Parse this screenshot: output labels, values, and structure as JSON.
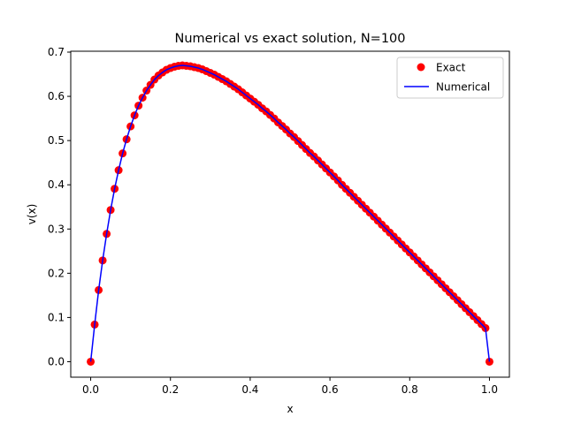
{
  "colors": {
    "exact": "#ff0000",
    "numerical": "#0000ff",
    "axis": "#000000",
    "legend_border": "#cccccc",
    "background": "#ffffff"
  },
  "chart_data": {
    "type": "line",
    "title": "Numerical vs exact solution, N=100",
    "xlabel": "x",
    "ylabel": "v(x)",
    "xlim": [
      -0.05,
      1.05
    ],
    "ylim": [
      -0.035,
      0.702
    ],
    "xticks": [
      0.0,
      0.2,
      0.4,
      0.6,
      0.8,
      1.0
    ],
    "xtick_labels": [
      "0.0",
      "0.2",
      "0.4",
      "0.6",
      "0.8",
      "1.0"
    ],
    "yticks": [
      0.0,
      0.1,
      0.2,
      0.3,
      0.4,
      0.5,
      0.6,
      0.7
    ],
    "ytick_labels": [
      "0.0",
      "0.1",
      "0.2",
      "0.3",
      "0.4",
      "0.5",
      "0.6",
      "0.7"
    ],
    "grid": false,
    "legend_position": "top-right",
    "series": [
      {
        "name": "Exact",
        "style": "markers",
        "color": "#ff0000",
        "x": [
          0,
          0.01,
          0.02,
          0.03,
          0.04,
          0.05,
          0.06,
          0.07,
          0.08,
          0.09,
          0.1,
          0.11,
          0.12,
          0.13,
          0.14,
          0.15,
          0.16,
          0.17,
          0.18,
          0.19,
          0.2,
          0.21,
          0.22,
          0.23,
          0.24,
          0.25,
          0.26,
          0.27,
          0.28,
          0.29,
          0.3,
          0.31,
          0.32,
          0.33,
          0.34,
          0.35,
          0.36,
          0.37,
          0.38,
          0.39,
          0.4,
          0.41,
          0.42,
          0.43,
          0.44,
          0.45,
          0.46,
          0.47,
          0.48,
          0.49,
          0.5,
          0.51,
          0.52,
          0.53,
          0.54,
          0.55,
          0.56,
          0.57,
          0.58,
          0.59,
          0.6,
          0.61,
          0.62,
          0.63,
          0.64,
          0.65,
          0.66,
          0.67,
          0.68,
          0.69,
          0.7,
          0.71,
          0.72,
          0.73,
          0.74,
          0.75,
          0.76,
          0.77,
          0.78,
          0.79,
          0.8,
          0.81,
          0.82,
          0.83,
          0.84,
          0.85,
          0.86,
          0.87,
          0.88,
          0.89,
          0.9,
          0.91,
          0.92,
          0.93,
          0.94,
          0.95,
          0.96,
          0.97,
          0.98,
          0.99,
          1
        ],
        "y": [
          0,
          0.084,
          0.162,
          0.229,
          0.289,
          0.343,
          0.391,
          0.433,
          0.471,
          0.503,
          0.532,
          0.557,
          0.579,
          0.597,
          0.613,
          0.626,
          0.638,
          0.647,
          0.654,
          0.66,
          0.664,
          0.667,
          0.669,
          0.67,
          0.669,
          0.668,
          0.666,
          0.664,
          0.661,
          0.657,
          0.653,
          0.649,
          0.644,
          0.639,
          0.634,
          0.628,
          0.622,
          0.616,
          0.609,
          0.602,
          0.595,
          0.588,
          0.581,
          0.573,
          0.566,
          0.558,
          0.55,
          0.541,
          0.533,
          0.525,
          0.516,
          0.508,
          0.499,
          0.49,
          0.481,
          0.472,
          0.464,
          0.455,
          0.446,
          0.437,
          0.428,
          0.419,
          0.41,
          0.4,
          0.391,
          0.382,
          0.373,
          0.364,
          0.355,
          0.346,
          0.337,
          0.328,
          0.319,
          0.31,
          0.301,
          0.292,
          0.283,
          0.274,
          0.265,
          0.256,
          0.247,
          0.238,
          0.229,
          0.22,
          0.211,
          0.202,
          0.193,
          0.184,
          0.175,
          0.166,
          0.157,
          0.148,
          0.139,
          0.13,
          0.121,
          0.112,
          0.103,
          0.094,
          0.085,
          0.076,
          0
        ]
      },
      {
        "name": "Numerical",
        "style": "line",
        "color": "#0000ff",
        "x": [
          0,
          0.01,
          0.02,
          0.03,
          0.04,
          0.05,
          0.06,
          0.07,
          0.08,
          0.09,
          0.1,
          0.11,
          0.12,
          0.13,
          0.14,
          0.15,
          0.16,
          0.17,
          0.18,
          0.19,
          0.2,
          0.21,
          0.22,
          0.23,
          0.24,
          0.25,
          0.26,
          0.27,
          0.28,
          0.29,
          0.3,
          0.31,
          0.32,
          0.33,
          0.34,
          0.35,
          0.36,
          0.37,
          0.38,
          0.39,
          0.4,
          0.41,
          0.42,
          0.43,
          0.44,
          0.45,
          0.46,
          0.47,
          0.48,
          0.49,
          0.5,
          0.51,
          0.52,
          0.53,
          0.54,
          0.55,
          0.56,
          0.57,
          0.58,
          0.59,
          0.6,
          0.61,
          0.62,
          0.63,
          0.64,
          0.65,
          0.66,
          0.67,
          0.68,
          0.69,
          0.7,
          0.71,
          0.72,
          0.73,
          0.74,
          0.75,
          0.76,
          0.77,
          0.78,
          0.79,
          0.8,
          0.81,
          0.82,
          0.83,
          0.84,
          0.85,
          0.86,
          0.87,
          0.88,
          0.89,
          0.9,
          0.91,
          0.92,
          0.93,
          0.94,
          0.95,
          0.96,
          0.97,
          0.98,
          0.99,
          1
        ],
        "y": [
          0,
          0.084,
          0.162,
          0.229,
          0.289,
          0.343,
          0.391,
          0.433,
          0.471,
          0.503,
          0.532,
          0.557,
          0.579,
          0.597,
          0.613,
          0.626,
          0.638,
          0.647,
          0.654,
          0.66,
          0.664,
          0.667,
          0.669,
          0.67,
          0.669,
          0.668,
          0.666,
          0.664,
          0.661,
          0.657,
          0.653,
          0.649,
          0.644,
          0.639,
          0.634,
          0.628,
          0.622,
          0.616,
          0.609,
          0.602,
          0.595,
          0.588,
          0.581,
          0.573,
          0.566,
          0.558,
          0.55,
          0.541,
          0.533,
          0.525,
          0.516,
          0.508,
          0.499,
          0.49,
          0.481,
          0.472,
          0.464,
          0.455,
          0.446,
          0.437,
          0.428,
          0.419,
          0.41,
          0.4,
          0.391,
          0.382,
          0.373,
          0.364,
          0.355,
          0.346,
          0.337,
          0.328,
          0.319,
          0.31,
          0.301,
          0.292,
          0.283,
          0.274,
          0.265,
          0.256,
          0.247,
          0.238,
          0.229,
          0.22,
          0.211,
          0.202,
          0.193,
          0.184,
          0.175,
          0.166,
          0.157,
          0.148,
          0.139,
          0.13,
          0.121,
          0.112,
          0.103,
          0.094,
          0.085,
          0.076,
          0
        ]
      }
    ]
  }
}
